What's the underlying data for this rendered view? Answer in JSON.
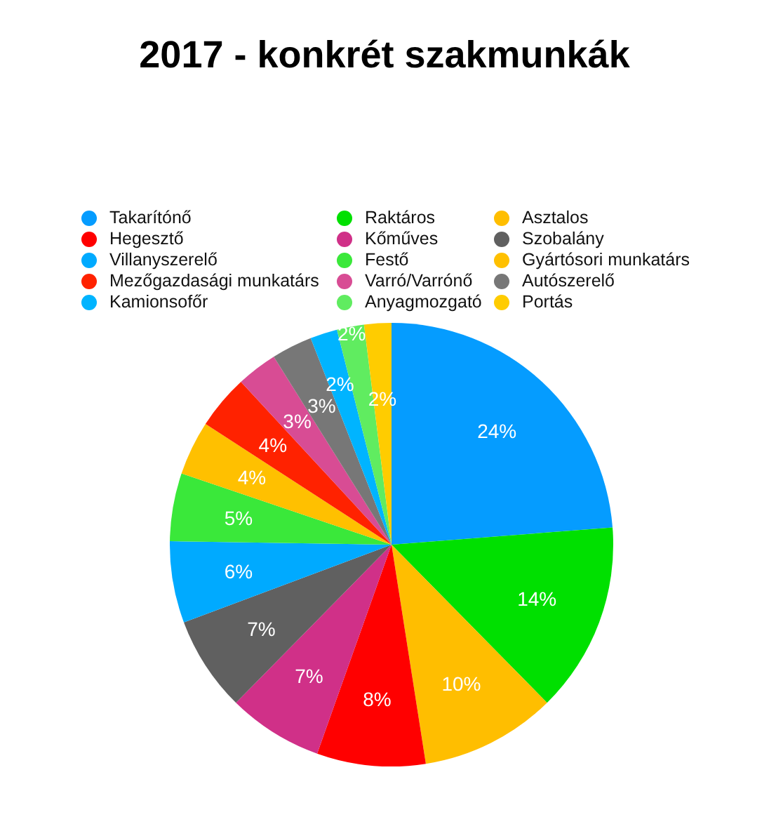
{
  "chart_data": {
    "type": "pie",
    "title": "2017 - konkrét szakmunkák",
    "categories": [
      "Takarítónő",
      "Raktáros",
      "Asztalos",
      "Hegesztő",
      "Kőműves",
      "Szobalány",
      "Villanyszerelő",
      "Festő",
      "Gyártósori munkatárs",
      "Mezőgazdasági munkatárs",
      "Varró/Varrónő",
      "Autószerelő",
      "Kamionsofőr",
      "Anyagmozgató",
      "Portás"
    ],
    "values": [
      24,
      14,
      10,
      8,
      7,
      7,
      6,
      5,
      4,
      4,
      3,
      3,
      2,
      2,
      2
    ],
    "value_labels": [
      "24%",
      "14%",
      "10%",
      "8%",
      "7%",
      "7%",
      "6%",
      "5%",
      "4%",
      "4%",
      "3%",
      "3%",
      "2%",
      "2%",
      "2%"
    ],
    "colors": [
      "#059cff",
      "#00e000",
      "#ffbe00",
      "#ff0000",
      "#d03088",
      "#606060",
      "#00aaff",
      "#3ae83a",
      "#ffc000",
      "#ff2200",
      "#d84c94",
      "#777777",
      "#00b4ff",
      "#60ec60",
      "#ffcc00"
    ],
    "legend": "top"
  }
}
